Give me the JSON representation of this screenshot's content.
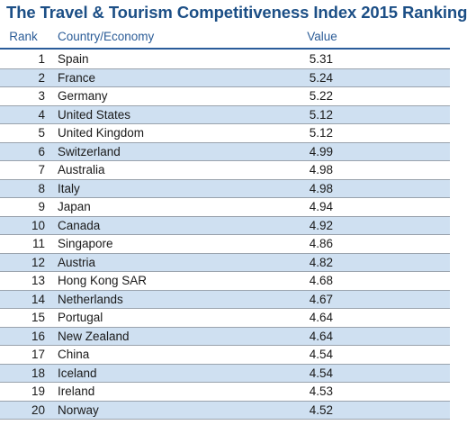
{
  "title": "The Travel & Tourism Competitiveness Index 2015 Ranking",
  "columns": {
    "rank": "Rank",
    "country": "Country/Economy",
    "value": "Value"
  },
  "rows": [
    {
      "rank": "1",
      "country": "Spain",
      "value": "5.31"
    },
    {
      "rank": "2",
      "country": "France",
      "value": "5.24"
    },
    {
      "rank": "3",
      "country": "Germany",
      "value": "5.22"
    },
    {
      "rank": "4",
      "country": "United States",
      "value": "5.12"
    },
    {
      "rank": "5",
      "country": "United Kingdom",
      "value": "5.12"
    },
    {
      "rank": "6",
      "country": "Switzerland",
      "value": "4.99"
    },
    {
      "rank": "7",
      "country": "Australia",
      "value": "4.98"
    },
    {
      "rank": "8",
      "country": "Italy",
      "value": "4.98"
    },
    {
      "rank": "9",
      "country": "Japan",
      "value": "4.94"
    },
    {
      "rank": "10",
      "country": "Canada",
      "value": "4.92"
    },
    {
      "rank": "11",
      "country": "Singapore",
      "value": "4.86"
    },
    {
      "rank": "12",
      "country": "Austria",
      "value": "4.82"
    },
    {
      "rank": "13",
      "country": "Hong Kong SAR",
      "value": "4.68"
    },
    {
      "rank": "14",
      "country": "Netherlands",
      "value": "4.67"
    },
    {
      "rank": "15",
      "country": "Portugal",
      "value": "4.64"
    },
    {
      "rank": "16",
      "country": "New Zealand",
      "value": "4.64"
    },
    {
      "rank": "17",
      "country": "China",
      "value": "4.54"
    },
    {
      "rank": "18",
      "country": "Iceland",
      "value": "4.54"
    },
    {
      "rank": "19",
      "country": "Ireland",
      "value": "4.53"
    },
    {
      "rank": "20",
      "country": "Norway",
      "value": "4.52"
    }
  ],
  "colors": {
    "title": "#1c4f86",
    "header_text": "#2b5c97",
    "header_rule": "#2a5c9a",
    "shaded_row": "#cfe0f1",
    "row_rule": "#9aa3ad"
  }
}
